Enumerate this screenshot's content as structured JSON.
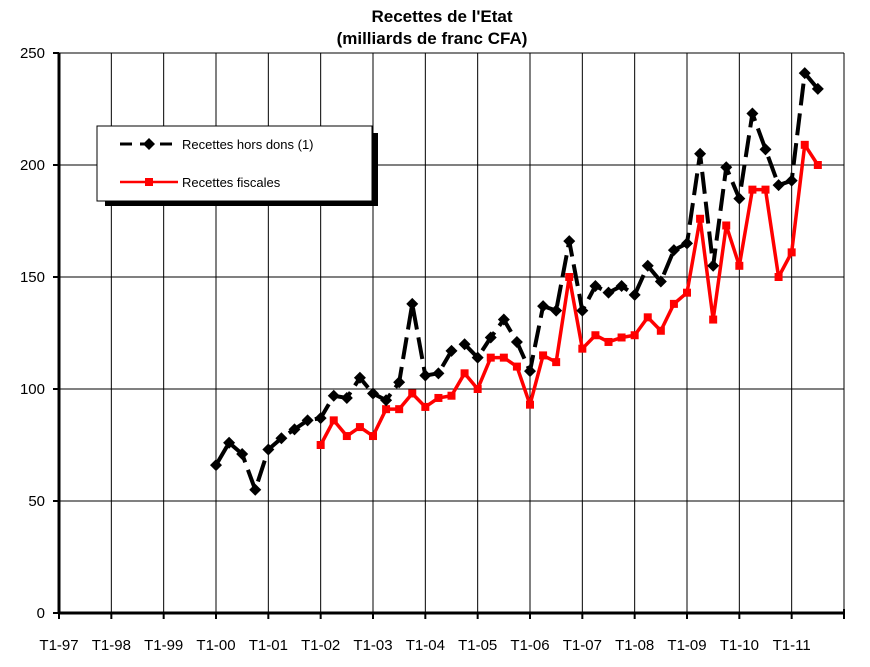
{
  "chart_data": {
    "type": "line",
    "title": "Recettes de l'Etat",
    "subtitle": "(milliards de franc CFA)",
    "xlabel": "",
    "ylabel": "",
    "ylim": [
      0,
      250
    ],
    "y_ticks": [
      "0",
      "50",
      "100",
      "150",
      "200",
      "250"
    ],
    "x_tick_labels": [
      "T1-97",
      "T1-98",
      "T1-99",
      "T1-00",
      "T1-01",
      "T1-02",
      "T1-03",
      "T1-04",
      "T1-05",
      "T1-06",
      "T1-07",
      "T1-08",
      "T1-09",
      "T1-10",
      "T1-11"
    ],
    "x_range": [
      0,
      60
    ],
    "grid": "vertical and horizontal",
    "legend_position": "upper-left",
    "series": [
      {
        "name": "Recettes hors dons (1)",
        "color": "#000000",
        "style": "dashed",
        "marker": "diamond",
        "x": [
          12,
          13,
          14,
          15,
          16,
          17,
          18,
          19,
          20,
          21,
          22,
          23,
          24,
          25,
          26,
          27,
          28,
          29,
          30,
          31,
          32,
          33,
          34,
          35,
          36,
          37,
          38,
          39,
          40,
          41,
          42,
          43,
          44,
          45,
          46,
          47,
          48,
          49,
          50,
          51,
          52,
          53,
          54,
          55,
          56,
          57,
          58
        ],
        "values": [
          66,
          76,
          71,
          55,
          73,
          78,
          82,
          86,
          87,
          97,
          96,
          105,
          98,
          95,
          103,
          138,
          106,
          107,
          117,
          120,
          114,
          123,
          131,
          121,
          108,
          137,
          135,
          166,
          135,
          146,
          143,
          146,
          142,
          155,
          148,
          162,
          165,
          205,
          155,
          199,
          185,
          223,
          207,
          191,
          193,
          241,
          234
        ]
      },
      {
        "name": "Recettes fiscales",
        "color": "#ff0000",
        "style": "solid",
        "marker": "square",
        "x": [
          20,
          21,
          22,
          23,
          24,
          25,
          26,
          27,
          28,
          29,
          30,
          31,
          32,
          33,
          34,
          35,
          36,
          37,
          38,
          39,
          40,
          41,
          42,
          43,
          44,
          45,
          46,
          47,
          48,
          49,
          50,
          51,
          52,
          53,
          54,
          55,
          56,
          57,
          58
        ],
        "values": [
          75,
          86,
          79,
          83,
          79,
          91,
          91,
          98,
          92,
          96,
          97,
          107,
          100,
          114,
          114,
          110,
          93,
          115,
          112,
          150,
          118,
          124,
          121,
          123,
          124,
          132,
          126,
          138,
          143,
          176,
          131,
          173,
          155,
          189,
          189,
          150,
          161,
          209,
          200
        ]
      }
    ]
  }
}
